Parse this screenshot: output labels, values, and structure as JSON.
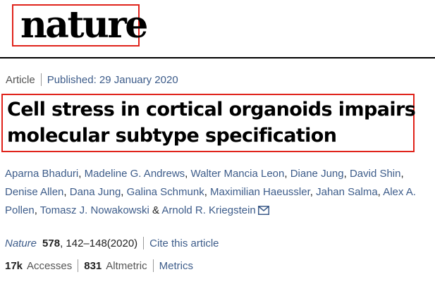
{
  "header": {
    "logo_text": "nature"
  },
  "meta": {
    "type": "Article",
    "published": "Published: 29 January 2020"
  },
  "article": {
    "title_line1": "Cell stress in cortical organoids impairs",
    "title_line2": "molecular subtype specification"
  },
  "authors": [
    "Aparna Bhaduri",
    "Madeline G. Andrews",
    "Walter Mancia Leon",
    "Diane Jung",
    "David Shin",
    "Denise Allen",
    "Dana Jung",
    "Galina Schmunk",
    "Maximilian Haeussler",
    "Jahan Salma",
    "Alex A. Pollen",
    "Tomasz J. Nowakowski",
    "Arnold R. Kriegstein"
  ],
  "authors_and": "&",
  "citation": {
    "journal": "Nature",
    "volume": "578",
    "pages": ", 142–148(2020)",
    "cite_link": "Cite this article"
  },
  "metrics": {
    "accesses_value": "17k",
    "accesses_label": "Accesses",
    "altmetric_value": "831",
    "altmetric_label": "Altmetric",
    "metrics_link": "Metrics"
  },
  "colors": {
    "link": "#3d5c8a",
    "highlight": "#e0231b"
  },
  "icons": {
    "mail": "envelope-icon"
  }
}
